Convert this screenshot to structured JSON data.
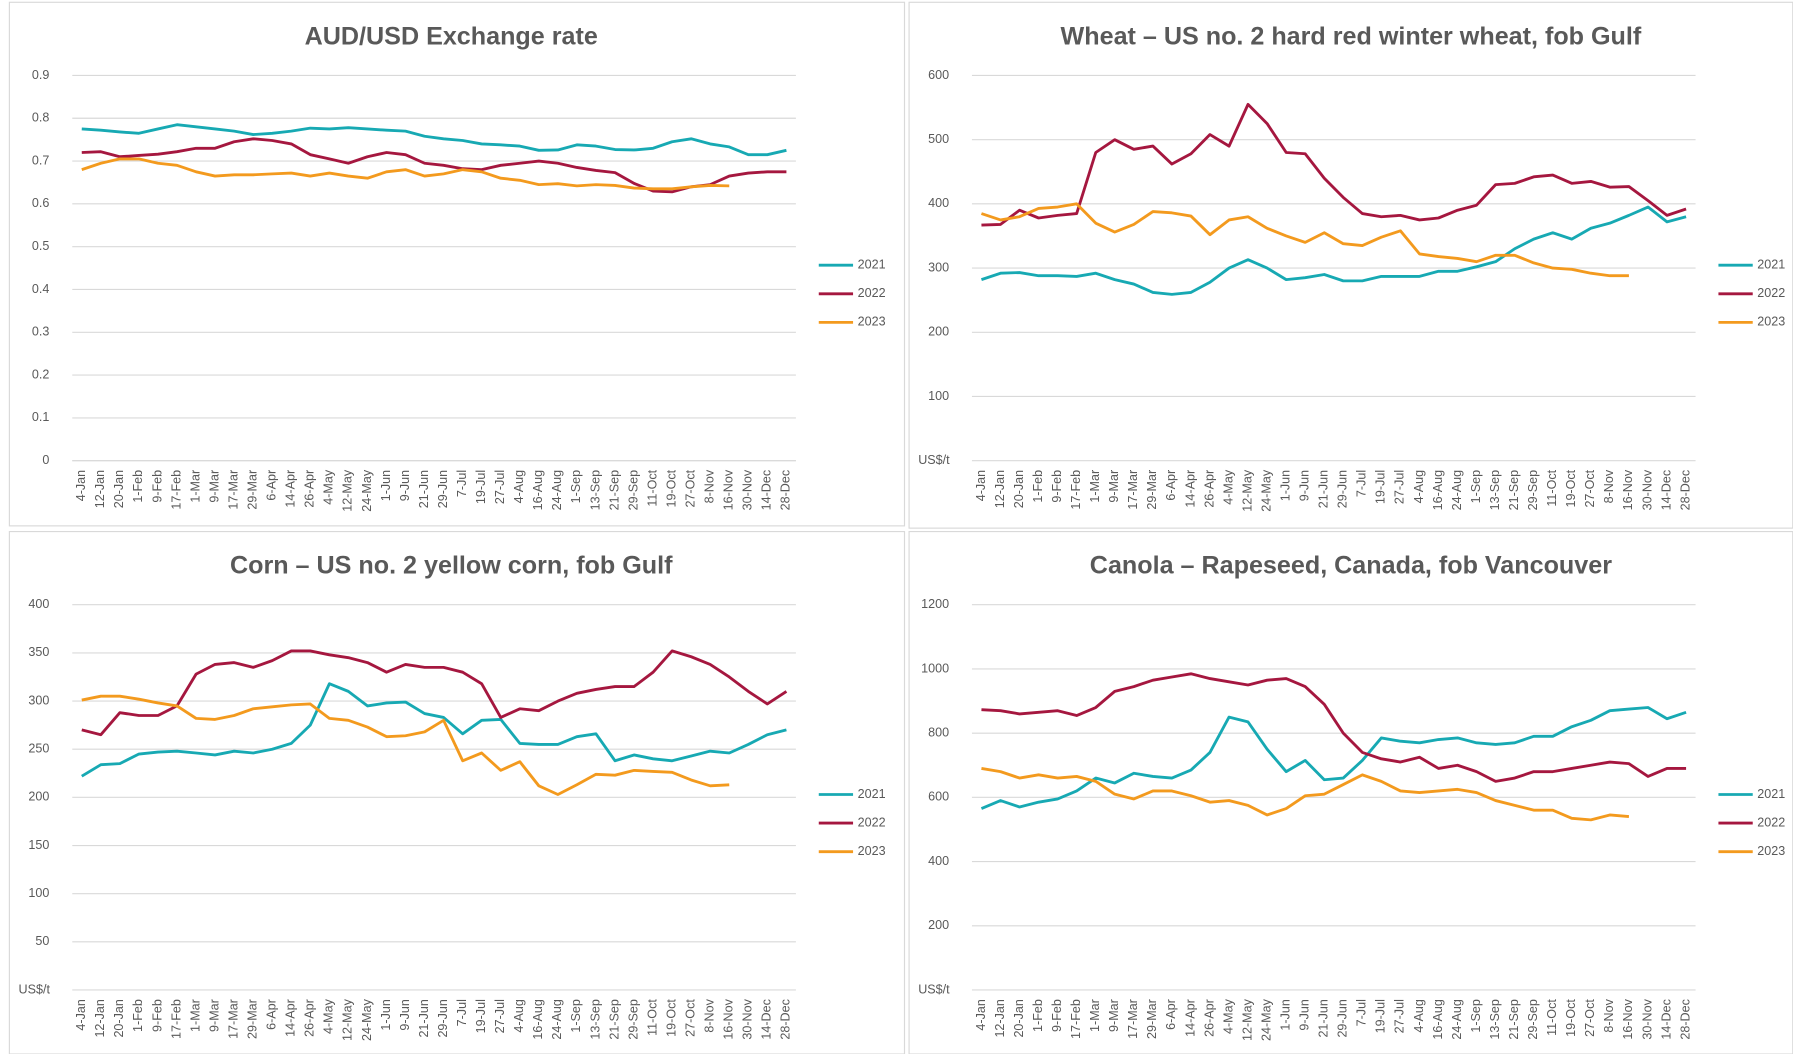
{
  "chart_data": [
    {
      "type": "line",
      "title": "AUD/USD Exchange rate",
      "grid": true,
      "legend": "right",
      "categories": [
        "4-Jan",
        "12-Jan",
        "20-Jan",
        "1-Feb",
        "9-Feb",
        "17-Feb",
        "1-Mar",
        "9-Mar",
        "17-Mar",
        "29-Mar",
        "6-Apr",
        "14-Apr",
        "26-Apr",
        "4-May",
        "12-May",
        "24-May",
        "1-Jun",
        "9-Jun",
        "21-Jun",
        "29-Jun",
        "7-Jul",
        "19-Jul",
        "27-Jul",
        "4-Aug",
        "16-Aug",
        "24-Aug",
        "1-Sep",
        "13-Sep",
        "21-Sep",
        "29-Sep",
        "11-Oct",
        "19-Oct",
        "27-Oct",
        "8-Nov",
        "16-Nov",
        "30-Nov",
        "14-Dec",
        "28-Dec"
      ],
      "ylim": [
        0,
        0.9
      ],
      "yticks": [
        0,
        0.1,
        0.2,
        0.3,
        0.4,
        0.5,
        0.6,
        0.7,
        0.8,
        0.9
      ],
      "series": [
        {
          "name": "2021",
          "color": "#17a9b3",
          "values": [
            0.775,
            0.772,
            0.768,
            0.765,
            0.775,
            0.785,
            0.78,
            0.775,
            0.77,
            0.762,
            0.765,
            0.77,
            0.777,
            0.775,
            0.778,
            0.775,
            0.772,
            0.77,
            0.758,
            0.752,
            0.748,
            0.74,
            0.738,
            0.735,
            0.725,
            0.726,
            0.738,
            0.735,
            0.727,
            0.726,
            0.73,
            0.745,
            0.752,
            0.74,
            0.733,
            0.715,
            0.715,
            0.725
          ]
        },
        {
          "name": "2022",
          "color": "#a5173f",
          "values": [
            0.72,
            0.722,
            0.71,
            0.713,
            0.716,
            0.722,
            0.73,
            0.73,
            0.745,
            0.752,
            0.748,
            0.74,
            0.715,
            0.705,
            0.695,
            0.71,
            0.72,
            0.715,
            0.695,
            0.69,
            0.682,
            0.68,
            0.69,
            0.695,
            0.7,
            0.695,
            0.685,
            0.678,
            0.673,
            0.648,
            0.63,
            0.628,
            0.64,
            0.645,
            0.665,
            0.672,
            0.675,
            0.675
          ]
        },
        {
          "name": "2023",
          "color": "#f39a1e",
          "values": [
            0.68,
            0.695,
            0.705,
            0.705,
            0.695,
            0.69,
            0.675,
            0.665,
            0.668,
            0.668,
            0.67,
            0.672,
            0.665,
            0.672,
            0.665,
            0.66,
            0.675,
            0.68,
            0.665,
            0.67,
            0.68,
            0.675,
            0.66,
            0.655,
            0.645,
            0.647,
            0.642,
            0.645,
            0.643,
            0.637,
            0.635,
            0.635,
            0.64,
            0.643,
            0.642,
            null,
            null,
            null
          ]
        }
      ]
    },
    {
      "type": "line",
      "title": "Wheat – US no. 2 hard red winter wheat, fob Gulf",
      "ylabel": "US$/t",
      "grid": true,
      "legend": "right",
      "categories": [
        "4-Jan",
        "12-Jan",
        "20-Jan",
        "1-Feb",
        "9-Feb",
        "17-Feb",
        "1-Mar",
        "9-Mar",
        "17-Mar",
        "29-Mar",
        "6-Apr",
        "14-Apr",
        "26-Apr",
        "4-May",
        "12-May",
        "24-May",
        "1-Jun",
        "9-Jun",
        "21-Jun",
        "29-Jun",
        "7-Jul",
        "19-Jul",
        "27-Jul",
        "4-Aug",
        "16-Aug",
        "24-Aug",
        "1-Sep",
        "13-Sep",
        "21-Sep",
        "29-Sep",
        "11-Oct",
        "19-Oct",
        "27-Oct",
        "8-Nov",
        "16-Nov",
        "30-Nov",
        "14-Dec",
        "28-Dec"
      ],
      "ylim": [
        0,
        600
      ],
      "yticks": [
        100,
        200,
        300,
        400,
        500,
        600
      ],
      "series": [
        {
          "name": "2021",
          "color": "#17a9b3",
          "values": [
            282,
            292,
            293,
            288,
            288,
            287,
            292,
            282,
            275,
            262,
            259,
            262,
            278,
            300,
            313,
            300,
            282,
            285,
            290,
            280,
            280,
            287,
            287,
            287,
            295,
            295,
            302,
            310,
            330,
            345,
            355,
            345,
            362,
            370,
            382,
            395,
            372,
            380
          ]
        },
        {
          "name": "2022",
          "color": "#a5173f",
          "values": [
            367,
            368,
            390,
            378,
            382,
            385,
            480,
            500,
            485,
            490,
            462,
            478,
            508,
            490,
            555,
            525,
            480,
            478,
            440,
            410,
            385,
            380,
            382,
            375,
            378,
            390,
            398,
            430,
            432,
            442,
            445,
            432,
            435,
            426,
            427,
            405,
            382,
            392
          ]
        },
        {
          "name": "2023",
          "color": "#f39a1e",
          "values": [
            385,
            375,
            380,
            393,
            395,
            400,
            370,
            356,
            368,
            388,
            386,
            381,
            352,
            375,
            380,
            362,
            350,
            340,
            355,
            338,
            335,
            348,
            358,
            322,
            318,
            315,
            310,
            320,
            320,
            308,
            300,
            298,
            292,
            288,
            288,
            null,
            null,
            null
          ]
        }
      ]
    },
    {
      "type": "line",
      "title": "Corn – US no. 2 yellow corn, fob Gulf",
      "ylabel": "US$/t",
      "grid": true,
      "legend": "right",
      "categories": [
        "4-Jan",
        "12-Jan",
        "20-Jan",
        "1-Feb",
        "9-Feb",
        "17-Feb",
        "1-Mar",
        "9-Mar",
        "17-Mar",
        "29-Mar",
        "6-Apr",
        "14-Apr",
        "26-Apr",
        "4-May",
        "12-May",
        "24-May",
        "1-Jun",
        "9-Jun",
        "21-Jun",
        "29-Jun",
        "7-Jul",
        "19-Jul",
        "27-Jul",
        "4-Aug",
        "16-Aug",
        "24-Aug",
        "1-Sep",
        "13-Sep",
        "21-Sep",
        "29-Sep",
        "11-Oct",
        "19-Oct",
        "27-Oct",
        "8-Nov",
        "16-Nov",
        "30-Nov",
        "14-Dec",
        "28-Dec"
      ],
      "ylim": [
        0,
        400
      ],
      "yticks": [
        50,
        100,
        150,
        200,
        250,
        300,
        350,
        400
      ],
      "series": [
        {
          "name": "2021",
          "color": "#17a9b3",
          "values": [
            222,
            234,
            235,
            245,
            247,
            248,
            246,
            244,
            248,
            246,
            250,
            256,
            275,
            318,
            310,
            295,
            298,
            299,
            287,
            283,
            266,
            280,
            281,
            256,
            255,
            255,
            263,
            266,
            238,
            244,
            240,
            238,
            243,
            248,
            246,
            255,
            265,
            270
          ]
        },
        {
          "name": "2022",
          "color": "#a5173f",
          "values": [
            270,
            265,
            288,
            285,
            285,
            295,
            328,
            338,
            340,
            335,
            342,
            352,
            352,
            348,
            345,
            340,
            330,
            338,
            335,
            335,
            330,
            318,
            283,
            292,
            290,
            300,
            308,
            312,
            315,
            315,
            330,
            352,
            346,
            338,
            325,
            310,
            297,
            310
          ]
        },
        {
          "name": "2023",
          "color": "#f39a1e",
          "values": [
            301,
            305,
            305,
            302,
            298,
            295,
            282,
            281,
            285,
            292,
            294,
            296,
            297,
            282,
            280,
            273,
            263,
            264,
            268,
            280,
            238,
            246,
            228,
            237,
            212,
            203,
            213,
            224,
            223,
            228,
            227,
            226,
            218,
            212,
            213,
            null,
            null,
            null
          ]
        }
      ]
    },
    {
      "type": "line",
      "title": "Canola – Rapeseed, Canada, fob Vancouver",
      "ylabel": "US$/t",
      "grid": true,
      "legend": "right",
      "categories": [
        "4-Jan",
        "12-Jan",
        "20-Jan",
        "1-Feb",
        "9-Feb",
        "17-Feb",
        "1-Mar",
        "9-Mar",
        "17-Mar",
        "29-Mar",
        "6-Apr",
        "14-Apr",
        "26-Apr",
        "4-May",
        "12-May",
        "24-May",
        "1-Jun",
        "9-Jun",
        "21-Jun",
        "29-Jun",
        "7-Jul",
        "19-Jul",
        "27-Jul",
        "4-Aug",
        "16-Aug",
        "24-Aug",
        "1-Sep",
        "13-Sep",
        "21-Sep",
        "29-Sep",
        "11-Oct",
        "19-Oct",
        "27-Oct",
        "8-Nov",
        "16-Nov",
        "30-Nov",
        "14-Dec",
        "28-Dec"
      ],
      "ylim": [
        0,
        1200
      ],
      "yticks": [
        200,
        400,
        600,
        800,
        1000,
        1200
      ],
      "series": [
        {
          "name": "2021",
          "color": "#17a9b3",
          "values": [
            565,
            590,
            570,
            585,
            595,
            620,
            660,
            645,
            675,
            665,
            660,
            685,
            740,
            850,
            835,
            750,
            680,
            715,
            655,
            660,
            715,
            785,
            775,
            770,
            780,
            785,
            770,
            765,
            770,
            790,
            790,
            820,
            840,
            870,
            875,
            880,
            845,
            865
          ]
        },
        {
          "name": "2022",
          "color": "#a5173f",
          "values": [
            873,
            870,
            860,
            865,
            870,
            855,
            880,
            930,
            945,
            965,
            975,
            985,
            970,
            960,
            950,
            965,
            970,
            945,
            890,
            800,
            740,
            720,
            710,
            725,
            690,
            700,
            680,
            650,
            660,
            680,
            680,
            690,
            700,
            710,
            705,
            665,
            690,
            690
          ]
        },
        {
          "name": "2023",
          "color": "#f39a1e",
          "values": [
            690,
            680,
            660,
            670,
            660,
            665,
            650,
            610,
            595,
            620,
            620,
            605,
            585,
            590,
            575,
            545,
            565,
            605,
            610,
            640,
            670,
            650,
            620,
            615,
            620,
            625,
            615,
            590,
            575,
            560,
            560,
            535,
            530,
            545,
            540,
            null,
            null,
            null
          ]
        }
      ]
    }
  ]
}
